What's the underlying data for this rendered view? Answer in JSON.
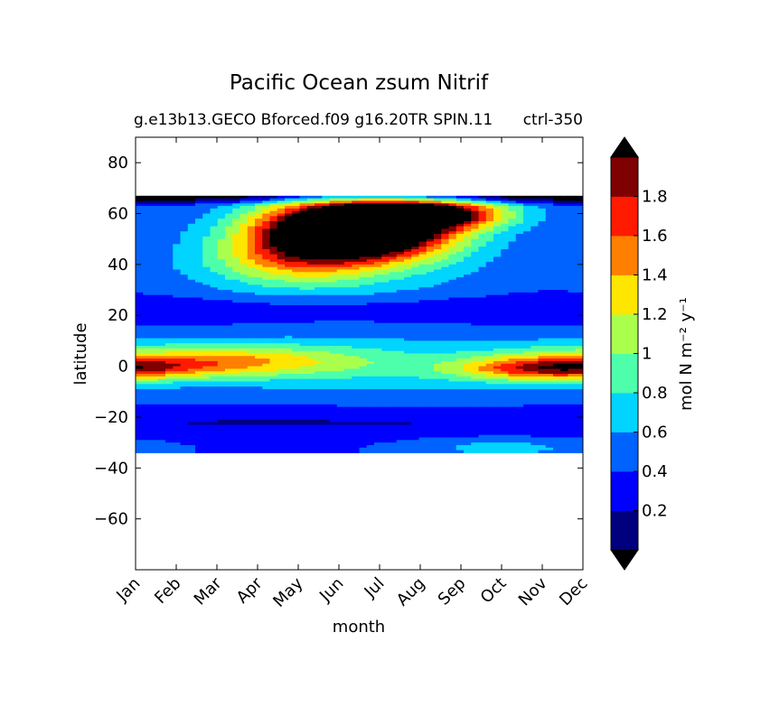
{
  "chart_data": {
    "type": "contour",
    "title": "Pacific Ocean zsum Nitrif",
    "subtitle_left": "g.e13b13.GECO Bforced.f09 g16.20TR SPIN.11",
    "subtitle_right": "ctrl-350",
    "xlabel": "month",
    "ylabel": "latitude",
    "x_ticks": [
      "Jan",
      "Feb",
      "Mar",
      "Apr",
      "May",
      "Jun",
      "Jul",
      "Aug",
      "Sep",
      "Oct",
      "Nov",
      "Dec"
    ],
    "ylim": [
      -80,
      90
    ],
    "y_ticks": [
      80,
      60,
      40,
      20,
      0,
      -20,
      -40,
      -60
    ],
    "y_tick_labels": [
      "80",
      "60",
      "40",
      "20",
      "0",
      "−20",
      "−40",
      "−60"
    ],
    "data_lat_range": [
      -34,
      67
    ],
    "colorbar": {
      "label": "mol N m⁻² y⁻¹",
      "levels": [
        0,
        0.2,
        0.4,
        0.6,
        0.8,
        1.0,
        1.2,
        1.4,
        1.6,
        1.8,
        2.0
      ],
      "tick_values": [
        0.2,
        0.4,
        0.6,
        0.8,
        1.0,
        1.2,
        1.4,
        1.6,
        1.8
      ],
      "tick_labels": [
        "0.2",
        "0.4",
        "0.6",
        "0.8",
        "1",
        "1.2",
        "1.4",
        "1.6",
        "1.8"
      ],
      "colors": [
        "#00007f",
        "#0000ff",
        "#0063ff",
        "#00d4ff",
        "#4dffaa",
        "#aaff4d",
        "#ffe600",
        "#ff7f00",
        "#ff1a00",
        "#7f0000"
      ],
      "over_color": "#000000",
      "under_color": "#000000",
      "extend": "both"
    },
    "field_description": "Zonal-integrated nitrification: maximum (>2) in Jun-Jul near 50-65N; secondary maximum (~1.2-1.4) near equator in Sep-Dec; minima (~0.2-0.4) near 20N and 20S."
  }
}
